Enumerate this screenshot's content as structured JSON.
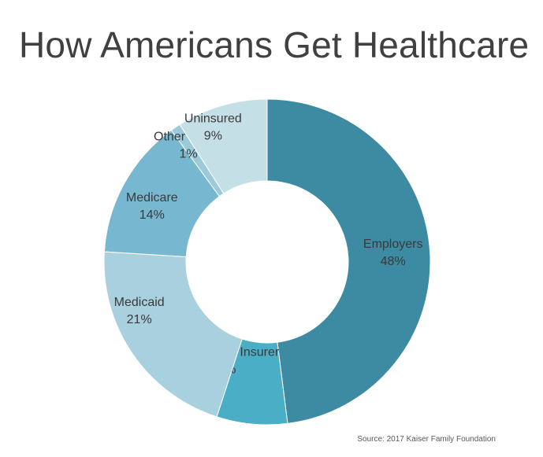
{
  "chart_data": {
    "type": "pie",
    "title": "How Americans Get Healthcare",
    "source": "Source: 2017 Kaiser Family Foundation",
    "slices": [
      {
        "label": "Employers",
        "value": 48,
        "value_label": "48%",
        "color": "#3d8aa3"
      },
      {
        "label": "Direct from Insurer",
        "value": 7,
        "value_label": "7%",
        "color": "#4aaec6"
      },
      {
        "label": "Medicaid",
        "value": 21,
        "value_label": "21%",
        "color": "#a9d0de"
      },
      {
        "label": "Medicare",
        "value": 14,
        "value_label": "14%",
        "color": "#77b7cf"
      },
      {
        "label": "Other Public",
        "value": 1,
        "value_label": "1%",
        "color": "#9ccadb"
      },
      {
        "label": "Uninsured",
        "value": 9,
        "value_label": "9%",
        "color": "#c5dfe7"
      }
    ]
  }
}
